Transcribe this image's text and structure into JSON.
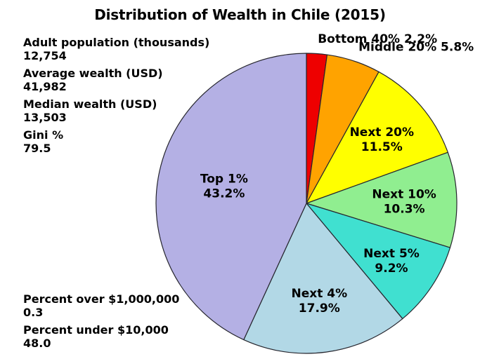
{
  "chart_data": {
    "type": "pie",
    "title": "Distribution of Wealth in Chile (2015)",
    "direction": "clockwise",
    "start_angle": "12-oclock",
    "stroke_color": "#26262e",
    "background_color": "#ffffff",
    "slices": [
      {
        "id": "bottom-40",
        "label": "Bottom 40%",
        "value": 2.2,
        "value_text": "2.2%",
        "color": "#ee0000",
        "label_placement": "outside",
        "label_r": 1.1
      },
      {
        "id": "middle-20",
        "label": "Middle 20%",
        "value": 5.8,
        "value_text": "5.8%",
        "color": "#ffa300",
        "label_placement": "outside",
        "label_r": 1.1
      },
      {
        "id": "next-20",
        "label": "Next 20%",
        "value": 11.5,
        "value_text": "11.5%",
        "color": "#ffff00",
        "label_placement": "inside",
        "label_r": 0.66
      },
      {
        "id": "next-10",
        "label": "Next 10%",
        "value": 10.3,
        "value_text": "10.3%",
        "color": "#90ee90",
        "label_placement": "inside",
        "label_r": 0.65
      },
      {
        "id": "next-5",
        "label": "Next 5%",
        "value": 9.2,
        "value_text": "9.2%",
        "color": "#40e0d0",
        "label_placement": "inside",
        "label_r": 0.68
      },
      {
        "id": "next-4",
        "label": "Next 4%",
        "value": 17.9,
        "value_text": "17.9%",
        "color": "#b2d8e6",
        "label_placement": "inside",
        "label_r": 0.65
      },
      {
        "id": "top-1",
        "label": "Top 1%",
        "value": 43.2,
        "value_text": "43.2%",
        "color": "#b4b0e4",
        "label_placement": "inside",
        "label_r": 0.56
      }
    ],
    "annotations": [
      {
        "label": "Adult population (thousands)",
        "value": "12,754",
        "position": "top-left"
      },
      {
        "label": "Average wealth (USD)",
        "value": "41,982",
        "position": "top-left"
      },
      {
        "label": "Median wealth (USD)",
        "value": "13,503",
        "position": "top-left"
      },
      {
        "label": "Gini %",
        "value": "79.5",
        "position": "top-left"
      },
      {
        "label": "Percent over $1,000,000",
        "value": "0.3",
        "position": "bottom-left"
      },
      {
        "label": "Percent under $10,000",
        "value": "48.0",
        "position": "bottom-left"
      }
    ]
  }
}
